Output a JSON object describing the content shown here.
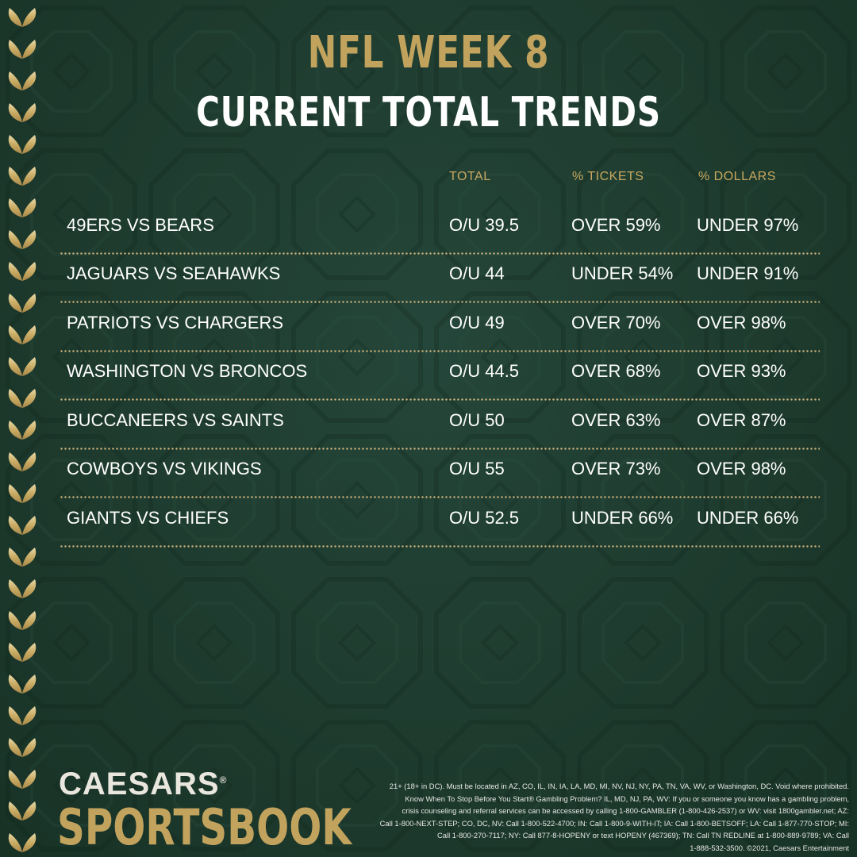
{
  "title": {
    "line1": "NFL WEEK 8",
    "line2": "CURRENT TOTAL TRENDS"
  },
  "columns": {
    "total": "TOTAL",
    "tickets": "% TICKETS",
    "dollars": "% DOLLARS"
  },
  "rows": [
    {
      "matchup": "49ERS VS BEARS",
      "total": "O/U 39.5",
      "tickets": "OVER 59%",
      "dollars": "UNDER 97%"
    },
    {
      "matchup": "JAGUARS VS SEAHAWKS",
      "total": "O/U 44",
      "tickets": "UNDER 54%",
      "dollars": "UNDER 91%"
    },
    {
      "matchup": "PATRIOTS VS CHARGERS",
      "total": "O/U 49",
      "tickets": "OVER 70%",
      "dollars": "OVER 98%"
    },
    {
      "matchup": "WASHINGTON VS BRONCOS",
      "total": "O/U 44.5",
      "tickets": "OVER 68%",
      "dollars": "OVER 93%"
    },
    {
      "matchup": "BUCCANEERS VS SAINTS",
      "total": "O/U 50",
      "tickets": "OVER 63%",
      "dollars": "OVER 87%"
    },
    {
      "matchup": "COWBOYS VS VIKINGS",
      "total": "O/U 55",
      "tickets": "OVER 73%",
      "dollars": "OVER 98%"
    },
    {
      "matchup": "GIANTS VS CHIEFS",
      "total": "O/U 52.5",
      "tickets": "UNDER 66%",
      "dollars": "UNDER 66%"
    }
  ],
  "logo": {
    "line1": "CAESARS",
    "registered": "®",
    "line2": "SPORTSBOOK"
  },
  "disclaimer": [
    "21+ (18+ in DC). Must be located in AZ, CO, IL, IN, IA, LA, MD, MI, NV, NJ, NY, PA, TN, VA, WV, or Washington, DC. Void where prohibited.",
    "Know When To Stop Before You Start® Gambling Problem? IL, MD, NJ, PA, WV: If you or someone you know has a gambling problem,",
    "crisis counseling and referral services can be accessed by calling 1-800-GAMBLER (1-800-426-2537) or WV: visit 1800gambler.net; AZ:",
    "Call 1-800-NEXT-STEP; CO, DC, NV: Call 1-800-522-4700; IN: Call 1-800-9-WITH-IT; IA: Call 1-800-BETSOFF; LA: Call 1-877-770-STOP; MI:",
    "Call 1-800-270-7117; NY: Call 877-8-HOPENY or text HOPENY (467369); TN: Call TN REDLINE at 1-800-889-9789; VA: Call",
    "1-888-532-3500. ©2021, Caesars Entertainment"
  ],
  "colors": {
    "background": "#1f3d30",
    "gold": "#c2a35e",
    "text": "#ffffff"
  }
}
